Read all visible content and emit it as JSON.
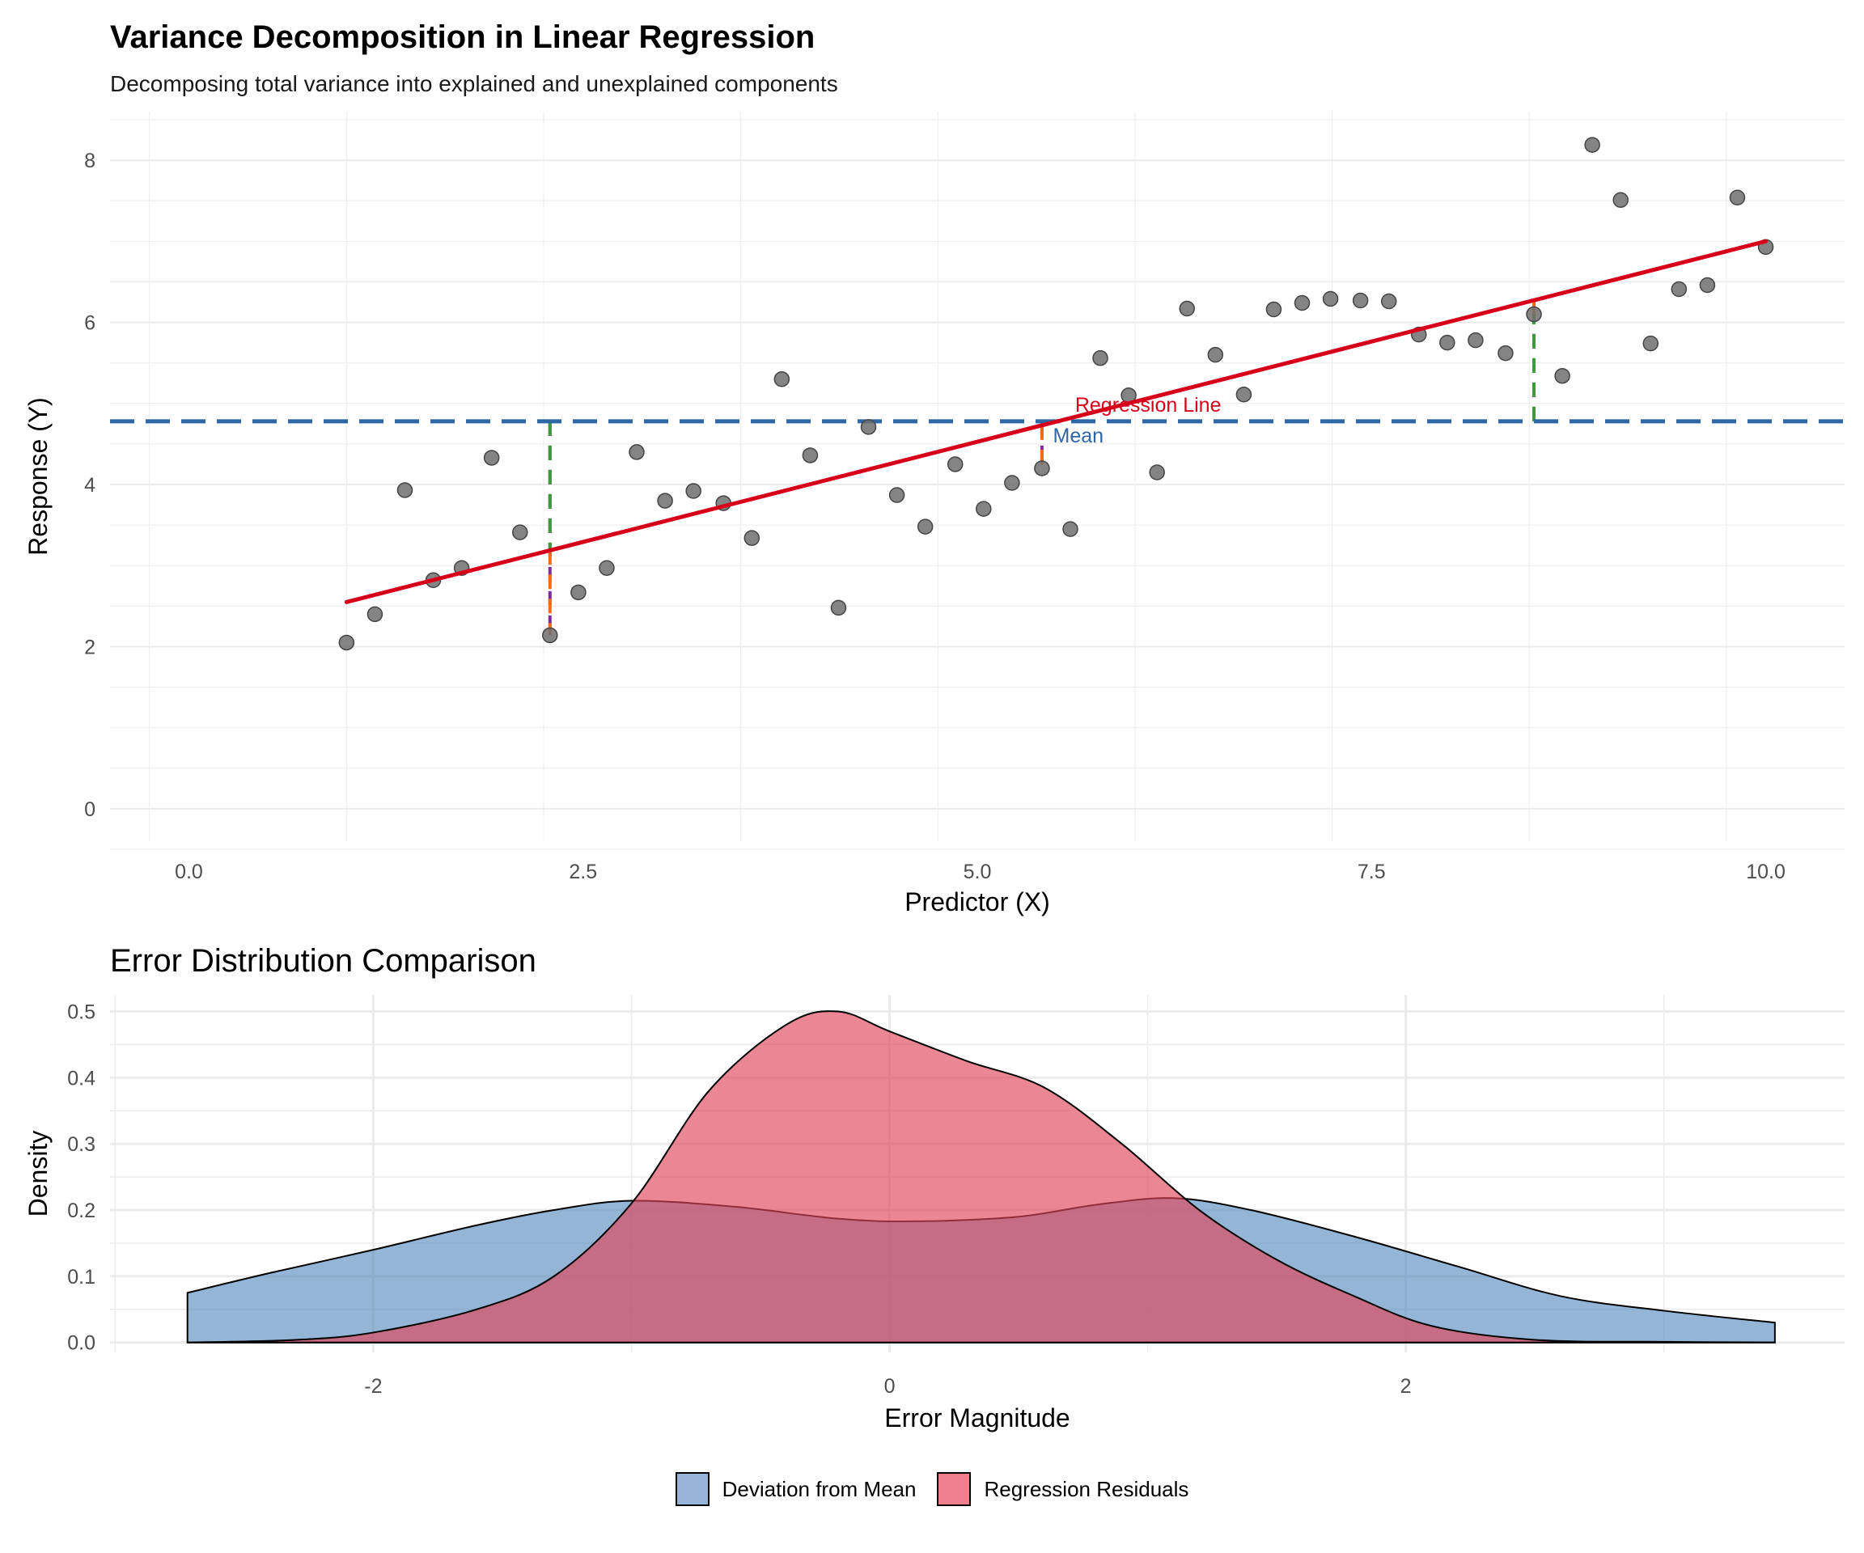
{
  "chart_data": [
    {
      "type": "scatter",
      "title": "Variance Decomposition in Linear Regression",
      "subtitle": "Decomposing total variance into explained and unexplained components",
      "xlabel": "Predictor (X)",
      "ylabel": "Response (Y)",
      "xlim": [
        -0.5,
        10.5
      ],
      "ylim": [
        -0.4,
        8.6
      ],
      "x_ticks": [
        "0.0",
        "2.5",
        "5.0",
        "7.5",
        "10.0"
      ],
      "y_ticks": [
        "0",
        "2",
        "4",
        "6",
        "8"
      ],
      "grid": true,
      "points": [
        [
          1.0,
          2.05
        ],
        [
          1.18,
          2.4
        ],
        [
          1.37,
          3.93
        ],
        [
          1.55,
          2.82
        ],
        [
          1.73,
          2.97
        ],
        [
          1.92,
          4.33
        ],
        [
          2.1,
          3.41
        ],
        [
          2.29,
          2.14
        ],
        [
          2.47,
          2.67
        ],
        [
          2.65,
          2.97
        ],
        [
          2.84,
          4.4
        ],
        [
          3.02,
          3.8
        ],
        [
          3.2,
          3.92
        ],
        [
          3.39,
          3.77
        ],
        [
          3.57,
          3.34
        ],
        [
          3.76,
          5.3
        ],
        [
          3.94,
          4.36
        ],
        [
          4.12,
          2.48
        ],
        [
          4.31,
          4.71
        ],
        [
          4.49,
          3.87
        ],
        [
          4.67,
          3.48
        ],
        [
          4.86,
          4.25
        ],
        [
          5.04,
          3.7
        ],
        [
          5.22,
          4.02
        ],
        [
          5.41,
          4.2
        ],
        [
          5.59,
          3.45
        ],
        [
          5.78,
          5.56
        ],
        [
          5.96,
          5.1
        ],
        [
          6.14,
          4.15
        ],
        [
          6.33,
          6.17
        ],
        [
          6.51,
          5.6
        ],
        [
          6.69,
          5.11
        ],
        [
          6.88,
          6.16
        ],
        [
          7.06,
          6.24
        ],
        [
          7.24,
          6.29
        ],
        [
          7.43,
          6.27
        ],
        [
          7.61,
          6.26
        ],
        [
          7.8,
          5.85
        ],
        [
          7.98,
          5.75
        ],
        [
          8.16,
          5.78
        ],
        [
          8.35,
          5.62
        ],
        [
          8.53,
          6.1
        ],
        [
          8.71,
          5.34
        ],
        [
          8.9,
          8.19
        ],
        [
          9.08,
          7.51
        ],
        [
          9.27,
          5.74
        ],
        [
          9.45,
          6.41
        ],
        [
          9.63,
          6.46
        ],
        [
          9.82,
          7.54
        ],
        [
          10.0,
          6.93
        ]
      ],
      "regression_line": {
        "x": [
          1.0,
          10.0
        ],
        "y": [
          2.55,
          7.0
        ],
        "color": "#d7001b"
      },
      "mean_line": {
        "y": 4.78,
        "color": "#2c67a6"
      },
      "annotations": [
        {
          "text": "Regression Line",
          "x": 5.62,
          "y": 4.9,
          "color": "#d7001b"
        },
        {
          "text": "Mean",
          "x": 5.48,
          "y": 4.52,
          "color": "#2c67a6"
        }
      ],
      "decomposition_segments": [
        {
          "x": 2.29,
          "observed": 2.14,
          "fitted": 3.19,
          "mean": 4.78
        },
        {
          "x": 5.41,
          "observed": 4.2,
          "fitted": 4.73,
          "mean": 4.78
        },
        {
          "x": 8.53,
          "observed": 6.1,
          "fitted": 6.26,
          "mean": 4.78
        }
      ],
      "segment_colors": {
        "total": "#7b2e9b",
        "explained": "#3d9a3d",
        "residual": "#f26b1d"
      }
    },
    {
      "type": "area",
      "title": "Error Distribution Comparison",
      "xlabel": "Error Magnitude",
      "ylabel": "Density",
      "xlim": [
        -3.02,
        3.7
      ],
      "ylim": [
        -0.015,
        0.525
      ],
      "x_ticks": [
        "-2",
        "0",
        "2"
      ],
      "y_ticks": [
        "0.0",
        "0.1",
        "0.2",
        "0.3",
        "0.4",
        "0.5"
      ],
      "grid": true,
      "legend_position": "bottom",
      "series": [
        {
          "name": "Deviation from Mean",
          "color": "#5b8dbf",
          "x": [
            -2.72,
            -2.4,
            -2.0,
            -1.6,
            -1.3,
            -1.0,
            -0.6,
            -0.2,
            0.1,
            0.5,
            0.8,
            1.1,
            1.4,
            1.8,
            2.2,
            2.6,
            3.0,
            3.43
          ],
          "y": [
            0.075,
            0.105,
            0.14,
            0.177,
            0.2,
            0.214,
            0.205,
            0.187,
            0.183,
            0.19,
            0.208,
            0.218,
            0.2,
            0.16,
            0.115,
            0.07,
            0.048,
            0.03
          ]
        },
        {
          "name": "Regression Residuals",
          "color": "#e0475a",
          "x": [
            -2.72,
            -2.3,
            -2.0,
            -1.6,
            -1.3,
            -1.0,
            -0.7,
            -0.4,
            -0.2,
            0.0,
            0.3,
            0.6,
            0.9,
            1.2,
            1.5,
            1.8,
            2.1,
            2.5,
            3.0,
            3.43
          ],
          "y": [
            0.0,
            0.004,
            0.015,
            0.05,
            0.1,
            0.21,
            0.38,
            0.48,
            0.5,
            0.47,
            0.425,
            0.385,
            0.3,
            0.2,
            0.125,
            0.07,
            0.025,
            0.004,
            0.001,
            0.0
          ]
        }
      ]
    }
  ]
}
